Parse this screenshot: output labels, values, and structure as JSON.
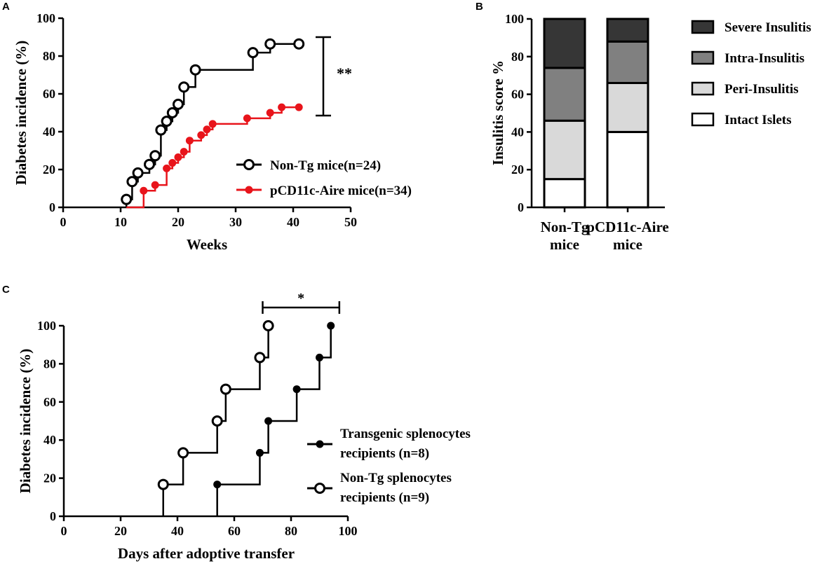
{
  "chart_data": [
    {
      "panel": "A",
      "type": "line",
      "step": true,
      "xlabel": "Weeks",
      "ylabel": "Diabetes incidence (%)",
      "xlim": [
        0,
        50
      ],
      "ylim": [
        0,
        100
      ],
      "xticks": [
        "0",
        "10",
        "20",
        "30",
        "40",
        "50"
      ],
      "yticks": [
        "0",
        "20",
        "40",
        "60",
        "80",
        "100"
      ],
      "series": [
        {
          "name": "Non-Tg mice(n=24)",
          "color": "#000000",
          "marker": "open-circle",
          "x": [
            11,
            12,
            13,
            15,
            16,
            17,
            18,
            19,
            20,
            21,
            23,
            33,
            36,
            41
          ],
          "y": [
            4.2,
            13.6,
            18.2,
            22.7,
            27.3,
            40.9,
            45.5,
            50,
            54.5,
            63.6,
            72.7,
            81.8,
            86.4,
            86.4
          ]
        },
        {
          "name": "pCD11c-Aire mice(n=34)",
          "color": "#e8141b",
          "marker": "filled-circle",
          "x": [
            14,
            16,
            18,
            19,
            20,
            21,
            22,
            24,
            25,
            26,
            32,
            36,
            38,
            41
          ],
          "y": [
            8.8,
            11.8,
            20.6,
            23.5,
            26.5,
            29.4,
            35.3,
            38.2,
            41.2,
            44.1,
            47.1,
            50,
            52.9,
            52.9
          ]
        }
      ],
      "significance": {
        "label": "**",
        "between_y": [
          48.5,
          90
        ]
      }
    },
    {
      "panel": "B",
      "type": "bar",
      "stacked": true,
      "ylabel": "Insulitis score %",
      "ylim": [
        0,
        100
      ],
      "yticks": [
        "0",
        "20",
        "40",
        "60",
        "80",
        "100"
      ],
      "categories": [
        [
          "Non-Tg",
          "mice"
        ],
        [
          "pCD11c-Aire",
          "mice"
        ]
      ],
      "series": [
        {
          "name": "Intact Islets",
          "color": "#ffffff",
          "values": [
            15,
            40
          ]
        },
        {
          "name": "Peri-Insulitis",
          "color": "#d9d9d9",
          "values": [
            31,
            26
          ]
        },
        {
          "name": "Intra-Insulitis",
          "color": "#808080",
          "values": [
            28,
            22
          ]
        },
        {
          "name": "Severe Insulitis",
          "color": "#363636",
          "values": [
            26,
            12
          ]
        }
      ],
      "legend_order": [
        "Severe Insulitis",
        "Intra-Insulitis",
        "Peri-Insulitis",
        "Intact Islets"
      ]
    },
    {
      "panel": "C",
      "type": "line",
      "step": true,
      "xlabel": "Days after adoptive transfer",
      "ylabel": "Diabetes incidence (%)",
      "xlim": [
        0,
        100
      ],
      "ylim": [
        0,
        100
      ],
      "xticks": [
        "0",
        "20",
        "40",
        "60",
        "80",
        "100"
      ],
      "yticks": [
        "0",
        "20",
        "40",
        "60",
        "80",
        "100"
      ],
      "series": [
        {
          "name": [
            "Transgenic splenocytes",
            "recipients (n=8)"
          ],
          "color": "#000000",
          "marker": "filled-circle",
          "x": [
            54,
            69,
            72,
            82,
            90,
            94
          ],
          "y": [
            16.7,
            33.3,
            50,
            66.7,
            83.3,
            100
          ]
        },
        {
          "name": [
            "Non-Tg splenocytes",
            "recipients (n=9)"
          ],
          "color": "#000000",
          "marker": "open-circle",
          "x": [
            35,
            42,
            54,
            57,
            69,
            72
          ],
          "y": [
            16.7,
            33.3,
            50,
            66.7,
            83.3,
            100
          ]
        }
      ],
      "significance": {
        "label": "*",
        "between_x": [
          70,
          97
        ]
      }
    }
  ]
}
